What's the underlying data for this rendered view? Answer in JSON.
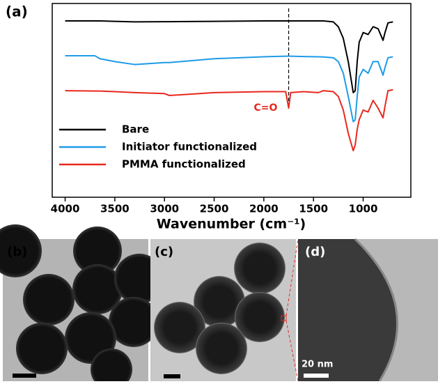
{
  "chart_data": {
    "type": "line",
    "panel_label": "(a)",
    "xlabel": "Wavenumber (cm⁻¹)",
    "xlim": [
      4130,
      520
    ],
    "xticks": [
      4000,
      3500,
      3000,
      2500,
      2000,
      1500,
      1000
    ],
    "ylim": [
      0,
      100
    ],
    "x": [
      4000,
      3700,
      3650,
      3500,
      3300,
      3000,
      2950,
      2500,
      2000,
      1780,
      1750,
      1730,
      1600,
      1450,
      1400,
      1300,
      1250,
      1200,
      1150,
      1100,
      1080,
      1060,
      1040,
      1000,
      950,
      900,
      850,
      800,
      780,
      750,
      700
    ],
    "series": [
      {
        "name": "Bare",
        "color": "#000000",
        "values": [
          91,
          91,
          91,
          90.8,
          90.5,
          90.6,
          90.6,
          90.8,
          91,
          91,
          91,
          91,
          91,
          91,
          91,
          90.5,
          88,
          82,
          70,
          54,
          55,
          70,
          80,
          85,
          84,
          88,
          87,
          81,
          85,
          90,
          90.5
        ]
      },
      {
        "name": "Initiator functionalized",
        "color": "#1e9be8",
        "values": [
          73,
          73,
          71.5,
          70,
          68.5,
          69.5,
          69.5,
          71.5,
          72.5,
          72.8,
          72.8,
          72.8,
          72.6,
          72.5,
          72.4,
          72,
          70,
          64,
          52,
          39,
          40,
          52,
          62,
          66,
          64,
          70,
          70,
          63,
          67,
          72,
          72.5
        ]
      },
      {
        "name": "PMMA functionalized",
        "color": "#e8281e",
        "values": [
          55,
          54.8,
          54.8,
          54.5,
          54,
          53.5,
          52.5,
          54,
          54.5,
          54.5,
          46,
          54,
          54.5,
          54,
          55,
          54.5,
          52,
          45,
          33,
          24,
          27,
          35,
          40,
          45,
          44,
          50,
          46,
          41,
          47,
          55,
          55.5
        ]
      }
    ],
    "dashed_line_x": 1750,
    "annotation": "C=O"
  },
  "images": {
    "b": "(b)",
    "c": "(c)",
    "d": "(d)",
    "scale_d": "20 nm"
  }
}
